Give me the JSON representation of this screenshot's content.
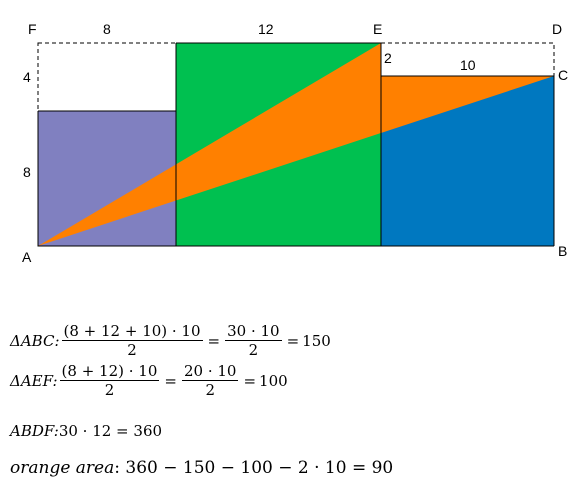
{
  "figure": {
    "points": {
      "A": "A",
      "B": "B",
      "C": "C",
      "D": "D",
      "E": "E",
      "F": "F"
    },
    "dimensions": {
      "top_left": "8",
      "top_mid": "12",
      "left_top": "4",
      "left_bottom": "8",
      "right_small": "2",
      "right_top": "10"
    },
    "colors": {
      "purple": "#8080C0",
      "green": "#00C050",
      "blue": "#0078C0",
      "orange": "#FF8000",
      "dashed": "#000000"
    }
  },
  "formulas": {
    "abc": {
      "label": "ΔABC:",
      "num1": "(8 + 12 + 10) · 10",
      "den1": "2",
      "eq1": "=",
      "num2": "30 · 10",
      "den2": "2",
      "eq2": "=",
      "result": "150"
    },
    "aef": {
      "label": "ΔAEF:",
      "num1": "(8 + 12) · 10",
      "den1": "2",
      "eq1": "=",
      "num2": "20 · 10",
      "den2": "2",
      "eq2": "=",
      "result": "100"
    },
    "abdf": {
      "label": "ABDF:",
      "expr": "30 · 12 = 360"
    },
    "orange": {
      "label": "orange area",
      "expr": ": 360 − 150 − 100 − 2 · 10 = 90"
    }
  }
}
